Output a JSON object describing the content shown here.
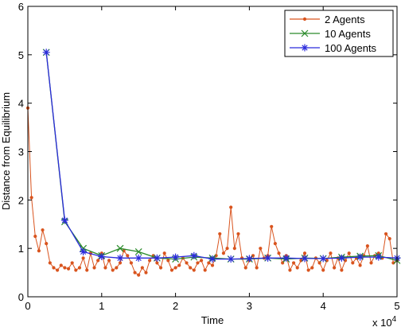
{
  "chart_data": {
    "type": "line",
    "title": "",
    "xlabel": "Time",
    "ylabel": "Distance from Equilibrium",
    "x_multiplier_label": "x 10",
    "x_multiplier_exponent": "4",
    "xlim": [
      0,
      5
    ],
    "ylim": [
      0,
      6
    ],
    "xticks": [
      "0",
      "1",
      "2",
      "3",
      "4",
      "5"
    ],
    "yticks": [
      "0",
      "1",
      "2",
      "3",
      "4",
      "5",
      "6"
    ],
    "grid": false,
    "legend_position": "top-right",
    "series": [
      {
        "name": "2 Agents",
        "color": "#d9541e",
        "marker": "dot",
        "x": [
          0,
          0.05,
          0.1,
          0.15,
          0.2,
          0.25,
          0.3,
          0.35,
          0.4,
          0.45,
          0.5,
          0.55,
          0.6,
          0.65,
          0.7,
          0.75,
          0.8,
          0.85,
          0.9,
          0.95,
          1.0,
          1.05,
          1.1,
          1.15,
          1.2,
          1.25,
          1.3,
          1.35,
          1.4,
          1.45,
          1.5,
          1.55,
          1.6,
          1.65,
          1.7,
          1.75,
          1.8,
          1.85,
          1.9,
          1.95,
          2.0,
          2.05,
          2.1,
          2.15,
          2.2,
          2.25,
          2.3,
          2.35,
          2.4,
          2.45,
          2.5,
          2.55,
          2.6,
          2.65,
          2.7,
          2.75,
          2.8,
          2.85,
          2.9,
          2.95,
          3.0,
          3.05,
          3.1,
          3.15,
          3.2,
          3.25,
          3.3,
          3.35,
          3.4,
          3.45,
          3.5,
          3.55,
          3.6,
          3.65,
          3.7,
          3.75,
          3.8,
          3.85,
          3.9,
          3.95,
          4.0,
          4.05,
          4.1,
          4.15,
          4.2,
          4.25,
          4.3,
          4.35,
          4.4,
          4.45,
          4.5,
          4.55,
          4.6,
          4.65,
          4.7,
          4.75,
          4.8,
          4.85,
          4.9,
          4.95,
          5.0
        ],
        "values": [
          3.9,
          2.05,
          1.25,
          0.95,
          1.38,
          1.1,
          0.7,
          0.6,
          0.55,
          0.65,
          0.6,
          0.58,
          0.7,
          0.55,
          0.6,
          0.8,
          0.55,
          0.9,
          0.6,
          0.75,
          0.9,
          0.6,
          0.75,
          0.55,
          0.6,
          0.7,
          0.95,
          0.85,
          0.7,
          0.5,
          0.45,
          0.6,
          0.5,
          0.75,
          0.85,
          0.7,
          0.6,
          0.9,
          0.75,
          0.55,
          0.6,
          0.65,
          0.8,
          0.7,
          0.6,
          0.55,
          0.7,
          0.75,
          0.55,
          0.7,
          0.65,
          0.85,
          1.3,
          0.9,
          1.0,
          1.85,
          1.0,
          1.3,
          0.8,
          0.6,
          0.75,
          0.85,
          0.6,
          1.0,
          0.8,
          0.85,
          1.45,
          1.1,
          0.9,
          0.7,
          0.85,
          0.55,
          0.7,
          0.6,
          0.75,
          0.9,
          0.55,
          0.6,
          0.8,
          0.7,
          0.55,
          0.75,
          0.9,
          0.6,
          0.8,
          0.55,
          0.75,
          0.9,
          0.7,
          0.8,
          0.65,
          0.85,
          1.05,
          0.7,
          0.85,
          0.9,
          0.8,
          1.3,
          1.2,
          0.7,
          0.75
        ]
      },
      {
        "name": "10 Agents",
        "color": "#2a8a2a",
        "marker": "x",
        "x": [
          0.25,
          0.5,
          0.75,
          1.0,
          1.25,
          1.5,
          1.75,
          2.0,
          2.25,
          2.5,
          2.75,
          3.0,
          3.25,
          3.5,
          3.75,
          4.0,
          4.25,
          4.5,
          4.75,
          5.0
        ],
        "values": [
          5.05,
          1.55,
          1.0,
          0.85,
          1.0,
          0.93,
          0.8,
          0.78,
          0.82,
          0.8,
          0.78,
          0.78,
          0.8,
          0.78,
          0.8,
          0.79,
          0.82,
          0.84,
          0.85,
          0.75
        ]
      },
      {
        "name": "100 Agents",
        "color": "#2b2bdc",
        "marker": "star",
        "x": [
          0.25,
          0.5,
          0.75,
          1.0,
          1.25,
          1.5,
          1.75,
          2.0,
          2.25,
          2.5,
          2.75,
          3.0,
          3.25,
          3.5,
          3.75,
          4.0,
          4.25,
          4.5,
          4.75,
          5.0
        ],
        "values": [
          5.05,
          1.58,
          0.93,
          0.83,
          0.8,
          0.8,
          0.8,
          0.82,
          0.85,
          0.78,
          0.78,
          0.79,
          0.8,
          0.8,
          0.79,
          0.79,
          0.8,
          0.82,
          0.82,
          0.8
        ]
      }
    ]
  }
}
